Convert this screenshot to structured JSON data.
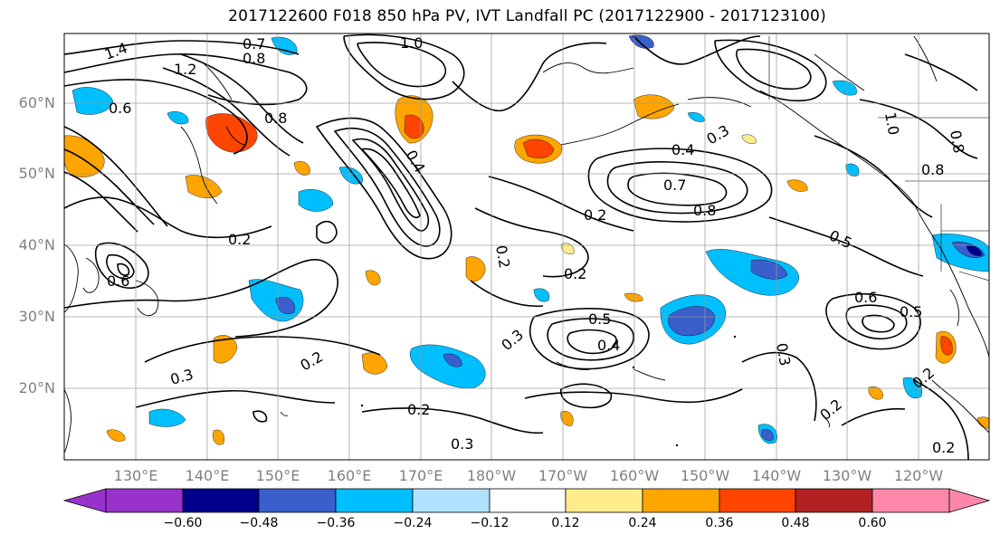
{
  "title": "2017122600 F018 850 hPa PV, IVT Landfall PC (2017122900 - 2017123100)",
  "lat_labels": [
    "60°N",
    "50°N",
    "40°N",
    "30°N",
    "20°N"
  ],
  "lon_labels": [
    "130°E",
    "140°E",
    "150°E",
    "160°E",
    "170°E",
    "180°W",
    "170°W",
    "160°W",
    "150°W",
    "140°W",
    "130°W",
    "120°W"
  ],
  "contour_labels": [
    "1.0",
    "1.4",
    "1.2",
    "0.7",
    "0.8",
    "0.6",
    "0.8",
    "0.4",
    "0.4",
    "0.7",
    "0.8",
    "0.3",
    "0.2",
    "0.2",
    "0.2",
    "0.5",
    "0.4",
    "0.3",
    "0.3",
    "0.2",
    "0.2",
    "0.3",
    "0.2",
    "0.5",
    "0.6",
    "0.5",
    "0.8",
    "0.2",
    "0.2",
    "0.6",
    "0.2",
    "0.8",
    "1.0",
    "0.3"
  ],
  "colorbar": {
    "ticks": [
      "−0.60",
      "−0.48",
      "−0.36",
      "−0.24",
      "−0.12",
      "0.12",
      "0.24",
      "0.36",
      "0.48",
      "0.60"
    ],
    "colors": [
      "#9932cc",
      "#00008b",
      "#3a5fcd",
      "#00bfff",
      "#b0e2ff",
      "#ffffff",
      "#ffec8b",
      "#ffa500",
      "#ff4500",
      "#b22222",
      "#ff88aa"
    ]
  },
  "shading_colors": {
    "neg_light": "#00bfff",
    "neg_mid": "#3a5fcd",
    "neg_dark": "#00008b",
    "pos_light": "#ffa500",
    "pos_mid": "#ff4500",
    "pos_pale": "#ffec8b"
  }
}
